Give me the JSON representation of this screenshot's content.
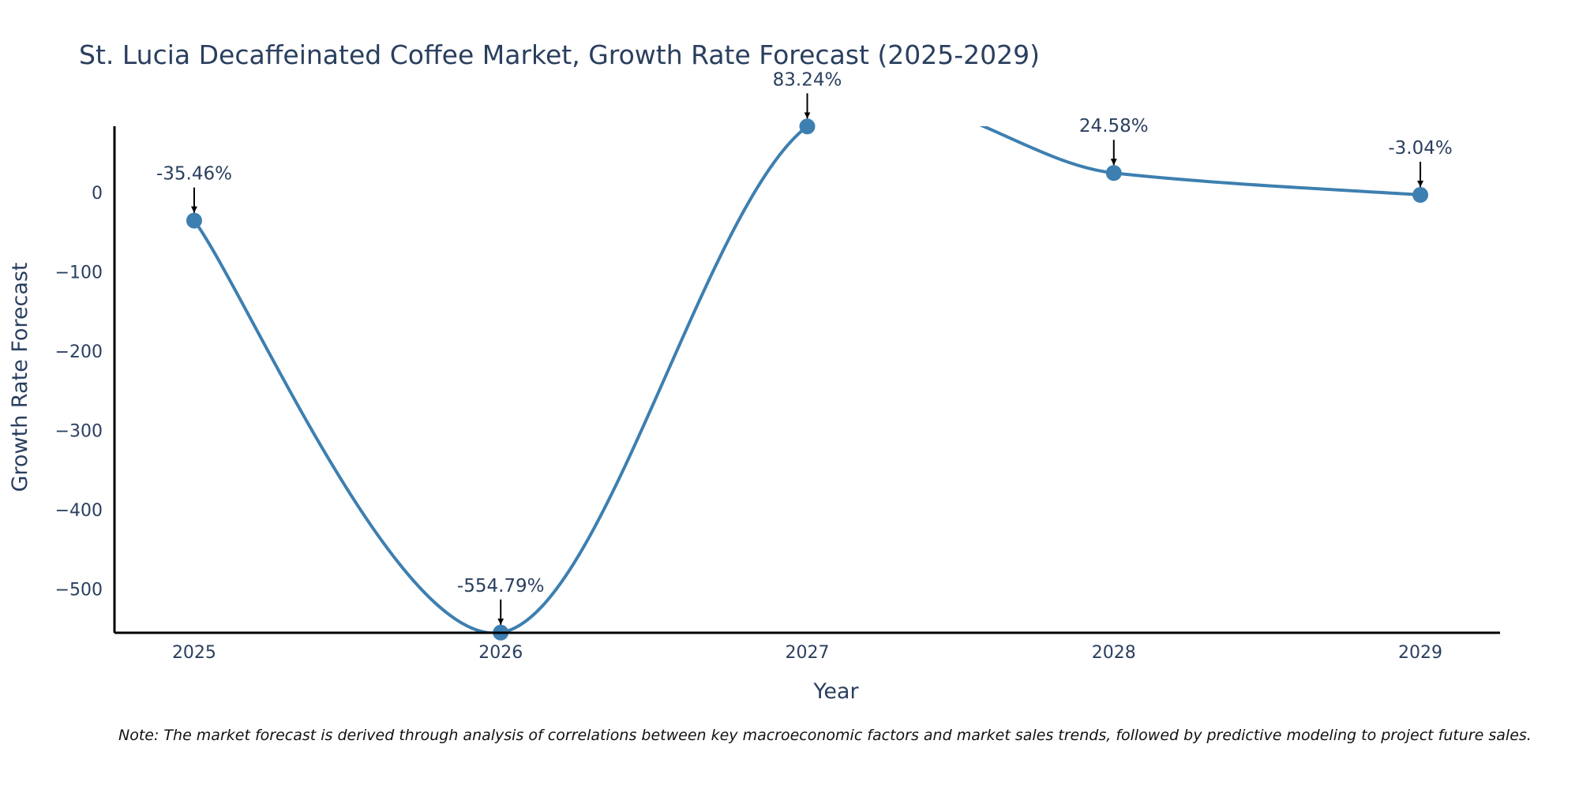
{
  "colors": {
    "line": "#3d7fb0",
    "marker": "#3d7fb0",
    "axis": "#000000",
    "text": "#2a3f5f",
    "arrow": "#000000"
  },
  "chart_data": {
    "type": "line",
    "title": "St. Lucia Decaffeinated Coffee Market, Growth Rate Forecast (2025-2029)",
    "xlabel": "Year",
    "ylabel": "Growth Rate Forecast",
    "x": [
      2025,
      2026,
      2027,
      2028,
      2029
    ],
    "x_tick_labels": [
      "2025",
      "2026",
      "2027",
      "2028",
      "2029"
    ],
    "values": [
      -35.46,
      -554.79,
      83.24,
      24.58,
      -3.04
    ],
    "annotations": [
      "-35.46%",
      "-554.79%",
      "83.24%",
      "24.58%",
      "-3.04%"
    ],
    "yticks": [
      0,
      -100,
      -200,
      -300,
      -400,
      -500
    ],
    "y_tick_labels": [
      "0",
      "−100",
      "−200",
      "−300",
      "−400",
      "−500"
    ],
    "xlim": [
      2024.74,
      2029.26
    ],
    "ylim": [
      -555,
      83.5
    ],
    "line_shape": "spline",
    "grid": false,
    "note": "Note: The market forecast is derived through analysis of correlations between key macroeconomic factors and market sales trends, followed by predictive modeling to project future sales."
  }
}
